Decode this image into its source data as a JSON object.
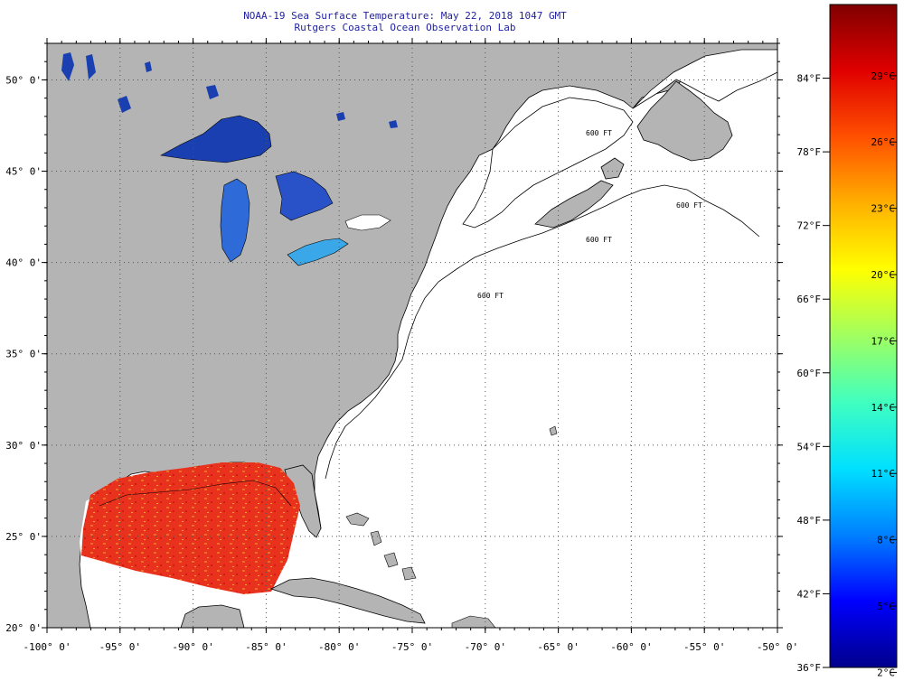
{
  "header": {
    "title": "NOAA-19 Sea Surface Temperature:  May 22, 2018 1047 GMT",
    "subtitle": "Rutgers Coastal Ocean Observation Lab"
  },
  "map": {
    "lon_range": [
      -100,
      -50
    ],
    "lat_range": [
      20,
      52
    ],
    "lon_ticks": [
      {
        "value": -100,
        "label": "-100° 0'"
      },
      {
        "value": -95,
        "label": "-95° 0'"
      },
      {
        "value": -90,
        "label": "-90° 0'"
      },
      {
        "value": -85,
        "label": "-85° 0'"
      },
      {
        "value": -80,
        "label": "-80° 0'"
      },
      {
        "value": -75,
        "label": "-75° 0'"
      },
      {
        "value": -70,
        "label": "-70° 0'"
      },
      {
        "value": -65,
        "label": "-65° 0'"
      },
      {
        "value": -60,
        "label": "-60° 0'"
      },
      {
        "value": -55,
        "label": "-55° 0'"
      },
      {
        "value": -50,
        "label": "-50° 0'"
      }
    ],
    "lat_ticks": [
      {
        "value": 20,
        "label": "20° 0'"
      },
      {
        "value": 25,
        "label": "25° 0'"
      },
      {
        "value": 30,
        "label": "30° 0'"
      },
      {
        "value": 35,
        "label": "35° 0'"
      },
      {
        "value": 40,
        "label": "40° 0'"
      },
      {
        "value": 45,
        "label": "45° 0'"
      },
      {
        "value": 50,
        "label": "50° 0'"
      }
    ],
    "grid": "dotted",
    "contour_labels": [
      "600 FT",
      "600 FT",
      "600 FT",
      "600 FT"
    ],
    "colors": {
      "land": "#b4b4b4",
      "water_no_data": "#ffffff",
      "coastline": "#000000",
      "gulf_sst": "#e8321e",
      "great_lakes": "#1a3fb0"
    }
  },
  "legend": {
    "placement": "right",
    "min_f": 36,
    "max_f": 90,
    "colors": [
      "#00008b",
      "#0000ff",
      "#0080ff",
      "#00e0ff",
      "#40ffbf",
      "#a0ff60",
      "#ffff00",
      "#ffb000",
      "#ff5000",
      "#e00000",
      "#800000"
    ],
    "fahrenheit": [
      {
        "value": 36,
        "label": "36°F"
      },
      {
        "value": 42,
        "label": "42°F"
      },
      {
        "value": 48,
        "label": "48°F"
      },
      {
        "value": 54,
        "label": "54°F"
      },
      {
        "value": 60,
        "label": "60°F"
      },
      {
        "value": 66,
        "label": "66°F"
      },
      {
        "value": 72,
        "label": "72°F"
      },
      {
        "value": 78,
        "label": "78°F"
      },
      {
        "value": 84,
        "label": "84°F"
      }
    ],
    "celsius": [
      {
        "value": 2,
        "label": "2°C"
      },
      {
        "value": 5,
        "label": "5°C"
      },
      {
        "value": 8,
        "label": "8°C"
      },
      {
        "value": 11,
        "label": "11°C"
      },
      {
        "value": 14,
        "label": "14°C"
      },
      {
        "value": 17,
        "label": "17°C"
      },
      {
        "value": 20,
        "label": "20°C"
      },
      {
        "value": 23,
        "label": "23°C"
      },
      {
        "value": 26,
        "label": "26°C"
      },
      {
        "value": 29,
        "label": "29°C"
      }
    ]
  }
}
